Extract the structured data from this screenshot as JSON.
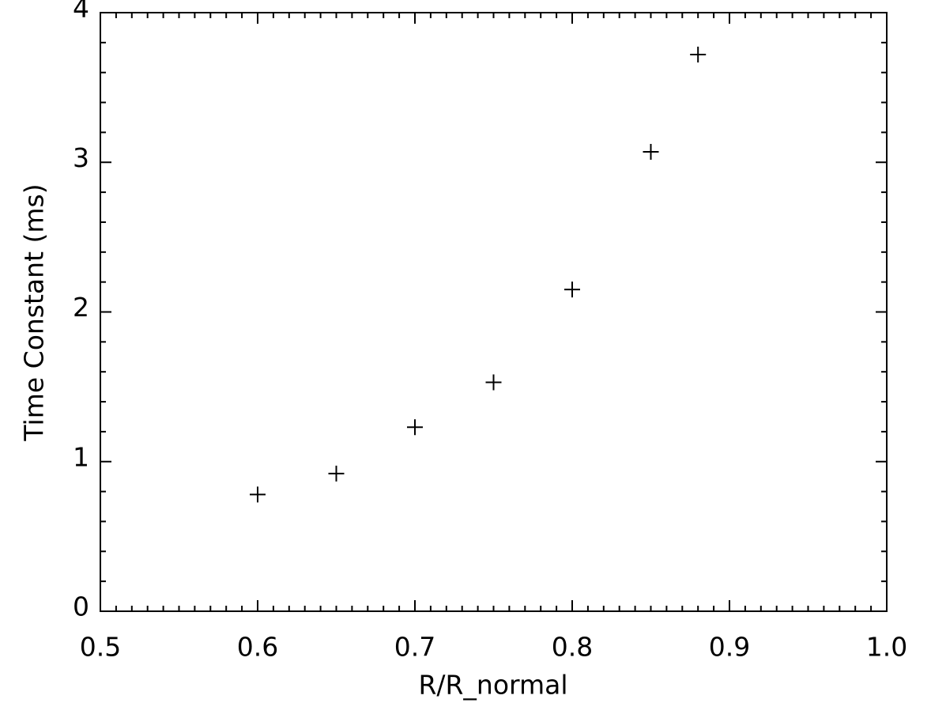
{
  "chart_data": {
    "type": "scatter",
    "x_label": "R/R_normal",
    "y_label": "Time Constant (ms)",
    "x": [
      0.6,
      0.65,
      0.7,
      0.75,
      0.8,
      0.85,
      0.88
    ],
    "values": [
      0.78,
      0.92,
      1.23,
      1.53,
      2.15,
      3.07,
      3.72
    ],
    "color": "#000000",
    "marker": "plus",
    "xlim": [
      0.5,
      1.0
    ],
    "xticks": [
      0.5,
      0.6,
      0.7,
      0.8,
      0.9,
      {
        "value": 1.0,
        "label": "1.0"
      }
    ],
    "ylim": [
      0,
      4
    ],
    "yticks": [
      0,
      1,
      2,
      3,
      4
    ],
    "grid": false
  }
}
